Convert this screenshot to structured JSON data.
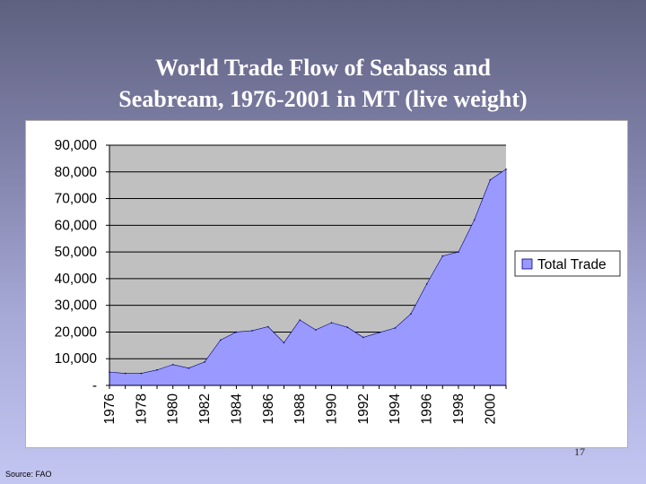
{
  "slide": {
    "title_line1": "World Trade Flow of Seabass and",
    "title_line2": "Seabream, 1976-2001 in MT (live weight)",
    "page_number": "17",
    "source": "Source: FAO"
  },
  "colors": {
    "area_fill": "#9999ff",
    "area_stroke": "#000080",
    "plot_background": "#c0c0c0",
    "gridline": "#000000"
  },
  "chart_data": {
    "type": "area",
    "title": "",
    "xlabel": "",
    "ylabel": "",
    "x": [
      1976,
      1977,
      1978,
      1979,
      1980,
      1981,
      1982,
      1983,
      1984,
      1985,
      1986,
      1987,
      1988,
      1989,
      1990,
      1991,
      1992,
      1993,
      1994,
      1995,
      1996,
      1997,
      1998,
      1999,
      2000,
      2001
    ],
    "series": [
      {
        "name": "Total Trade",
        "values": [
          5000,
          4500,
          4500,
          5800,
          7800,
          6500,
          8800,
          17000,
          20000,
          20500,
          22000,
          16000,
          24500,
          20800,
          23500,
          21800,
          18000,
          19800,
          21500,
          26800,
          38000,
          48500,
          50000,
          62000,
          77000,
          81000
        ]
      }
    ],
    "ylim": [
      0,
      90000
    ],
    "y_ticks": [
      0,
      10000,
      20000,
      30000,
      40000,
      50000,
      60000,
      70000,
      80000,
      90000
    ],
    "y_tick_labels": [
      "-",
      "10,000",
      "20,000",
      "30,000",
      "40,000",
      "50,000",
      "60,000",
      "70,000",
      "80,000",
      "90,000"
    ],
    "x_tick_labels": [
      "1976",
      "1978",
      "1980",
      "1982",
      "1984",
      "1986",
      "1988",
      "1990",
      "1992",
      "1994",
      "1996",
      "1998",
      "2000"
    ],
    "grid": true,
    "legend": {
      "position": "right",
      "entries": [
        "Total Trade"
      ]
    }
  }
}
